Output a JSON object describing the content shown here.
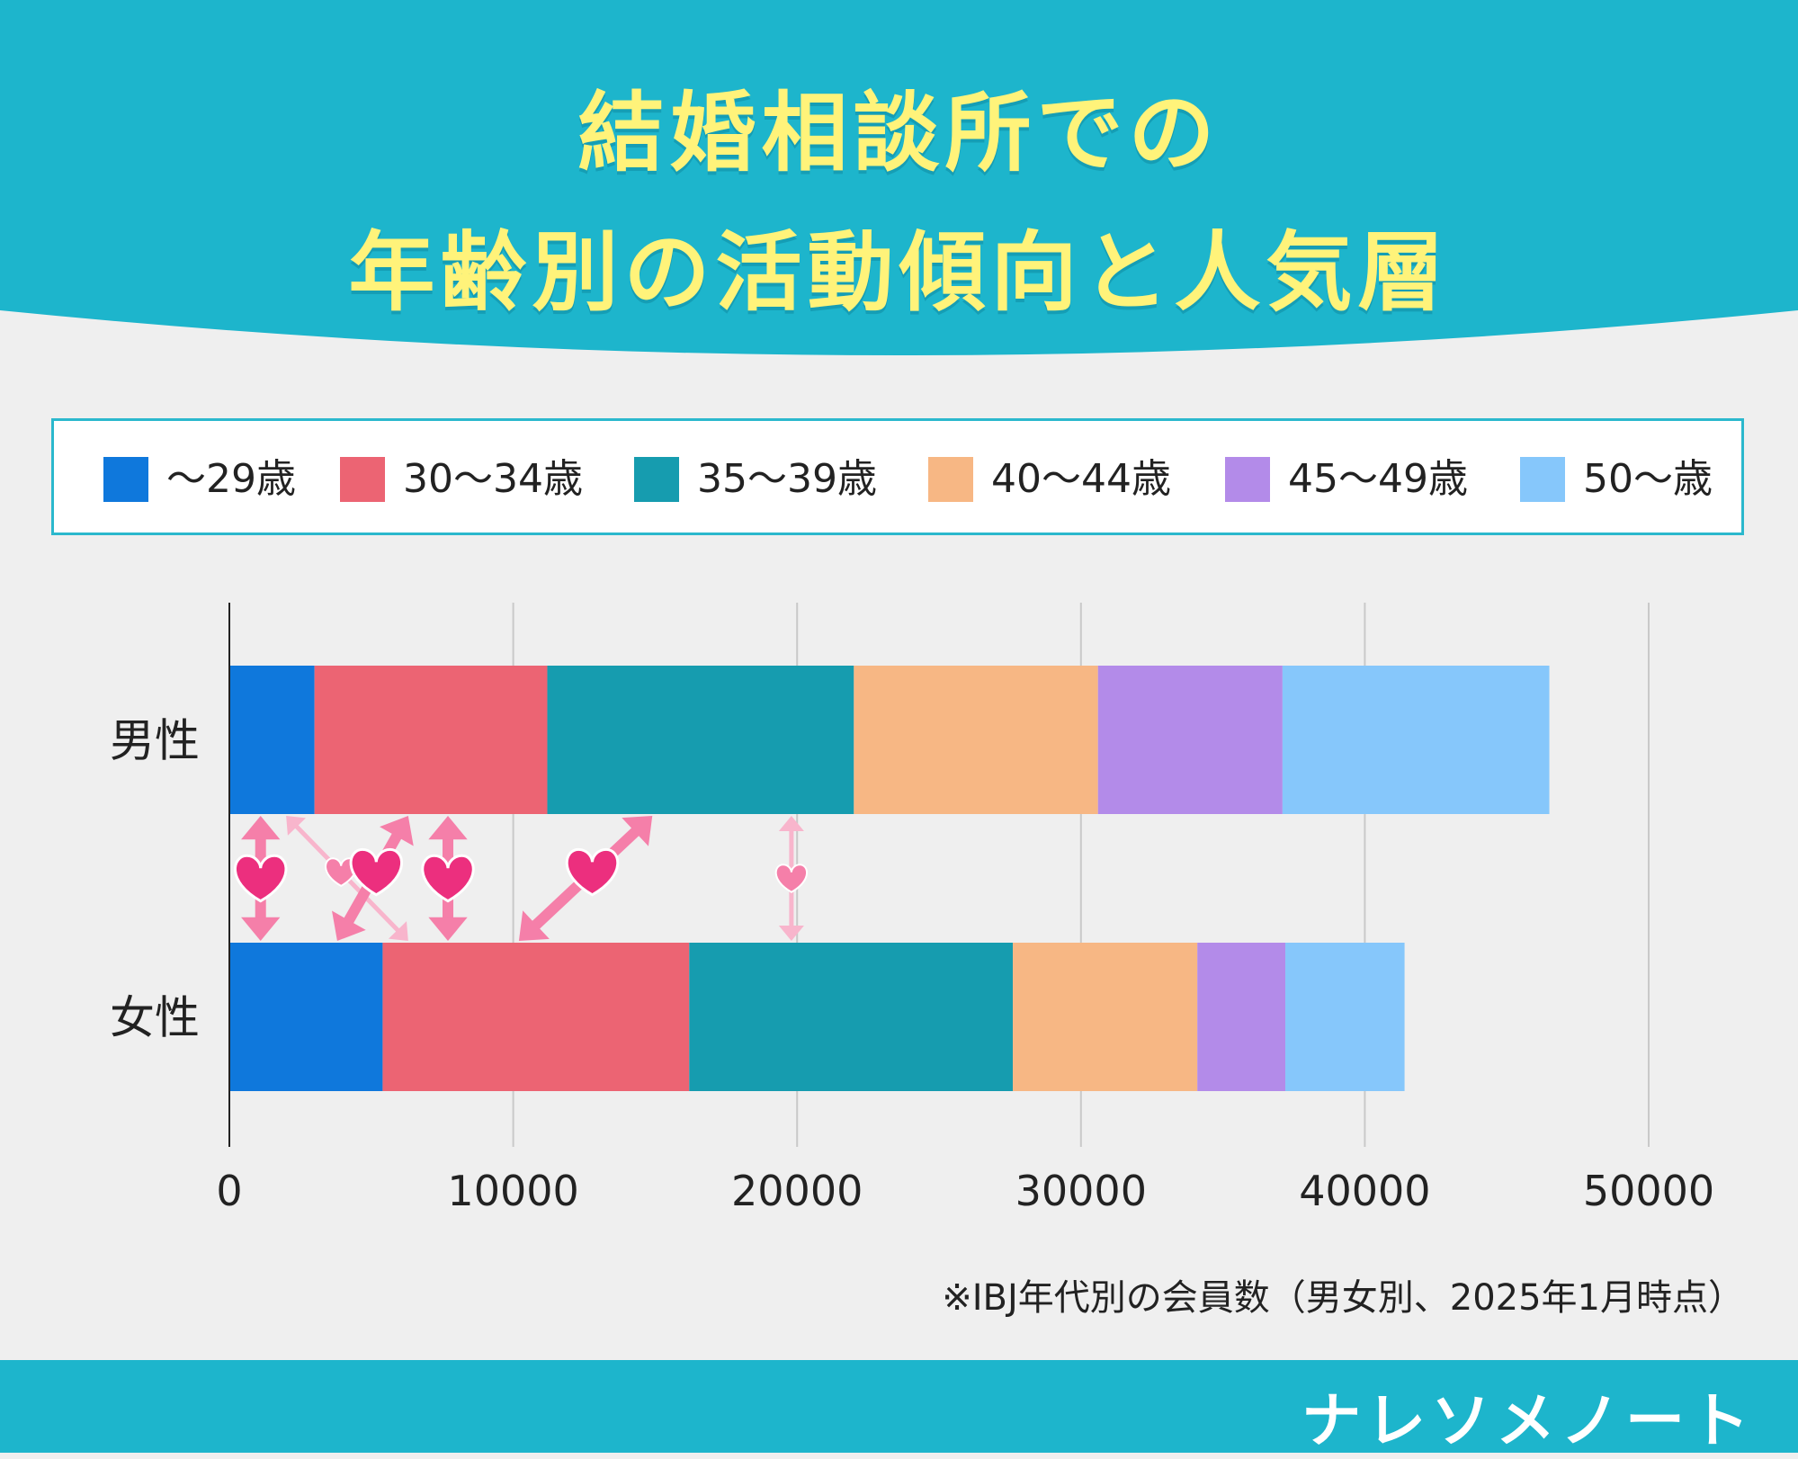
{
  "header": {
    "title_line1": "結婚相談所での",
    "title_line2": "年齢別の活動傾向と人気層",
    "background_color": "#1db5cc",
    "title_color": "#fff37a"
  },
  "legend": {
    "items": [
      {
        "label": "～29歳",
        "color": "#0f78dc"
      },
      {
        "label": "30～34歳",
        "color": "#ec6473"
      },
      {
        "label": "35～39歳",
        "color": "#169caf"
      },
      {
        "label": "40～44歳",
        "color": "#f7b784"
      },
      {
        "label": "45～49歳",
        "color": "#b38be9"
      },
      {
        "label": "50～歳",
        "color": "#86c7fb"
      }
    ]
  },
  "chart_data": {
    "type": "bar",
    "orientation": "horizontal",
    "stacked": true,
    "categories": [
      "男性",
      "女性"
    ],
    "series": [
      {
        "name": "～29歳",
        "values": [
          3000,
          5400
        ]
      },
      {
        "name": "30～34歳",
        "values": [
          8200,
          10800
        ]
      },
      {
        "name": "35～39歳",
        "values": [
          10800,
          11400
        ]
      },
      {
        "name": "40～44歳",
        "values": [
          8600,
          6500
        ]
      },
      {
        "name": "45～49歳",
        "values": [
          6500,
          3100
        ]
      },
      {
        "name": "50～歳",
        "values": [
          9400,
          4200
        ]
      }
    ],
    "xlim": [
      0,
      50000
    ],
    "xticks": [
      0,
      10000,
      20000,
      30000,
      40000,
      50000
    ],
    "grid": true,
    "legend_position": "top",
    "colors": [
      "#0f78dc",
      "#ec6473",
      "#169caf",
      "#f7b784",
      "#b38be9",
      "#86c7fb"
    ],
    "annotations": {
      "arrows": [
        {
          "from": 1100,
          "to": 1100,
          "heart": "large"
        },
        {
          "from": 2000,
          "to": 6300,
          "heart": "small",
          "faded": true
        },
        {
          "from": 6300,
          "to": 3800,
          "heart": "large"
        },
        {
          "from": 7700,
          "to": 7700,
          "heart": "large"
        },
        {
          "from": 14900,
          "to": 10200,
          "heart": "large"
        },
        {
          "from": 19800,
          "to": 19800,
          "heart": "small",
          "faded": true
        }
      ],
      "heart_color": "#ec2f7e",
      "arrow_color": "#f57fa9",
      "faded_arrow_color": "#f8b5cc"
    }
  },
  "note": "※IBJ年代別の会員数（男女別、2025年1月時点）",
  "footer": {
    "brand": "ナレソメノート",
    "background_color": "#1db5cc"
  }
}
